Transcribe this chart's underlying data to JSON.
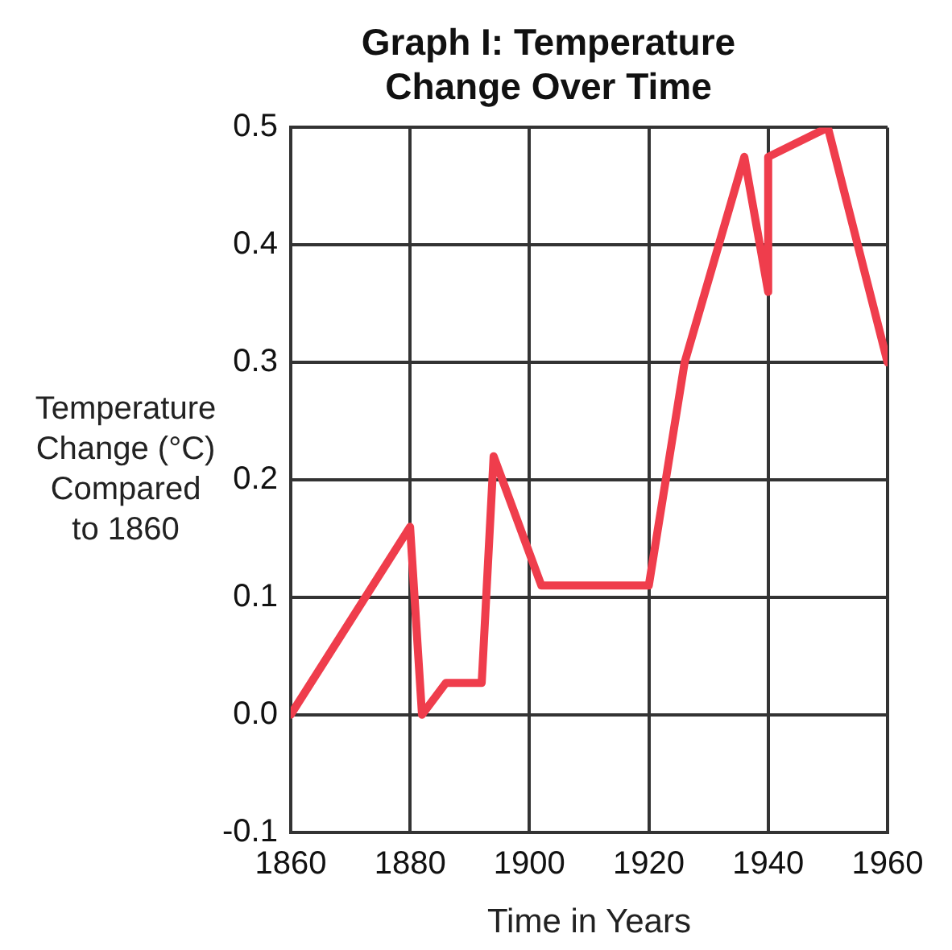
{
  "chart_data": {
    "type": "line",
    "title": [
      "Graph I: Temperature",
      "Change Over Time"
    ],
    "xlabel": "Time in Years",
    "ylabel": [
      "Temperature",
      "Change (°C)",
      "Compared",
      "to 1860"
    ],
    "x": [
      1860,
      1880,
      1882,
      1886,
      1892,
      1894,
      1902,
      1920,
      1926,
      1936,
      1940,
      1940,
      1950,
      1960
    ],
    "series": [
      {
        "color": "#ef3d4c",
        "values": [
          0,
          0.16,
          0,
          0.027,
          0.027,
          0.22,
          0.11,
          0.11,
          0.3,
          0.475,
          0.36,
          0.475,
          0.5,
          0.3
        ]
      }
    ],
    "xlim": [
      1860,
      1960
    ],
    "xticks": [
      1860,
      1880,
      1900,
      1920,
      1940,
      1960
    ],
    "ylim": [
      -0.1,
      0.5
    ],
    "yticks": [
      {
        "value": -0.1,
        "label": "-0.1"
      },
      {
        "value": 0,
        "label": "0.0"
      },
      {
        "value": 0.1,
        "label": "0.1"
      },
      {
        "value": 0.2,
        "label": "0.2"
      },
      {
        "value": 0.3,
        "label": "0.3"
      },
      {
        "value": 0.4,
        "label": "0.4"
      },
      {
        "value": 0.5,
        "label": "0.5"
      }
    ],
    "grid": true,
    "legend": false,
    "marker": "none",
    "line_style": "solid"
  }
}
